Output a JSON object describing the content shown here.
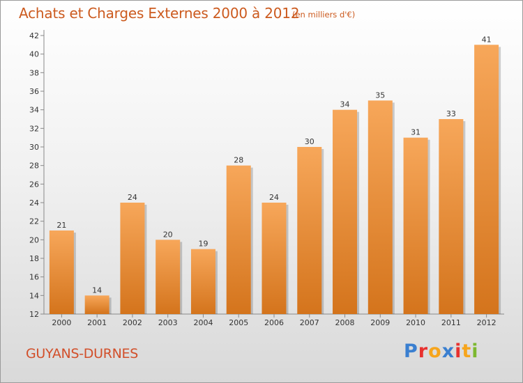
{
  "header": {
    "title": "Achats et Charges Externes 2000 à 2012",
    "subtitle": "(en milliers d'€)"
  },
  "footer": {
    "place": "GUYANS-DURNES",
    "logo_text": "Proxiti",
    "logo_colors": [
      "#3a7fd0",
      "#e8312f",
      "#f6a51c",
      "#3a7fd0",
      "#e8312f",
      "#f6a51c",
      "#7cb82f"
    ]
  },
  "colors": {
    "bar_top": "#f7a75a",
    "bar_bottom": "#d4741c",
    "accent": "#cc5a1e"
  },
  "chart_data": {
    "type": "bar",
    "title": "Achats et Charges Externes 2000 à 2012",
    "subtitle": "(en milliers d'€)",
    "categories": [
      "2000",
      "2001",
      "2002",
      "2003",
      "2004",
      "2005",
      "2006",
      "2007",
      "2008",
      "2009",
      "2010",
      "2011",
      "2012"
    ],
    "values": [
      21,
      14,
      24,
      20,
      19,
      28,
      24,
      30,
      34,
      35,
      31,
      33,
      41
    ],
    "ylim": [
      12,
      42
    ],
    "yticks": [
      12,
      14,
      16,
      18,
      20,
      22,
      24,
      26,
      28,
      30,
      32,
      34,
      36,
      38,
      40,
      42
    ],
    "xlabel": "",
    "ylabel": "",
    "grid": false,
    "data_labels": true
  }
}
